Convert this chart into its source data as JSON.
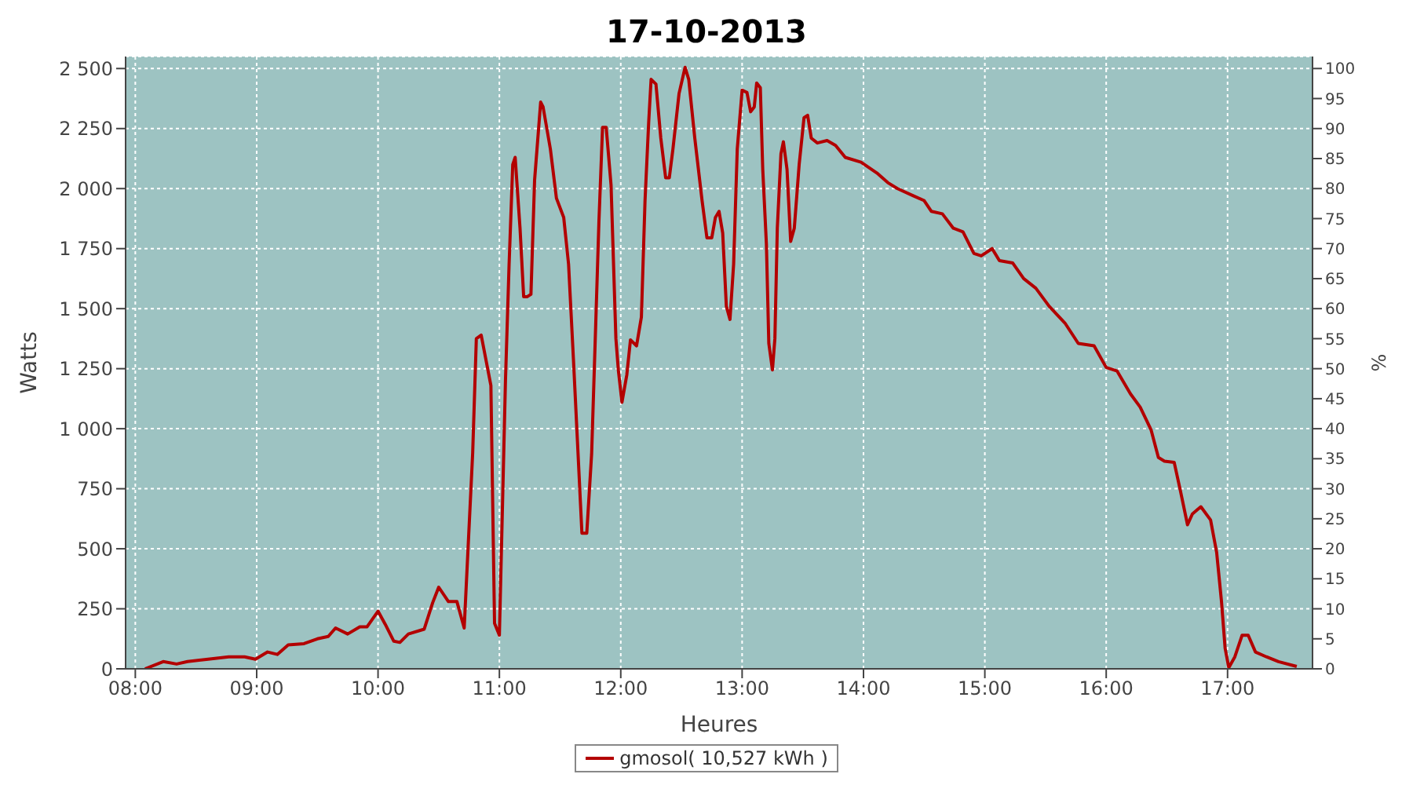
{
  "chart_data": {
    "type": "line",
    "title": "17-10-2013",
    "xlabel": "Heures",
    "ylabel": "Watts",
    "y2label": "%",
    "xlim": [
      7.92,
      17.7
    ],
    "xticks": [
      {
        "value": 8,
        "label": "08:00"
      },
      {
        "value": 9,
        "label": "09:00"
      },
      {
        "value": 10,
        "label": "10:00"
      },
      {
        "value": 11,
        "label": "11:00"
      },
      {
        "value": 12,
        "label": "12:00"
      },
      {
        "value": 13,
        "label": "13:00"
      },
      {
        "value": 14,
        "label": "14:00"
      },
      {
        "value": 15,
        "label": "15:00"
      },
      {
        "value": 16,
        "label": "16:00"
      },
      {
        "value": 17,
        "label": "17:00"
      }
    ],
    "ylim": [
      0,
      2550
    ],
    "yticks": [
      0,
      250,
      500,
      750,
      {
        "value": 1000,
        "label": "1 000"
      },
      {
        "value": 1250,
        "label": "1 250"
      },
      {
        "value": 1500,
        "label": "1 500"
      },
      {
        "value": 1750,
        "label": "1 750"
      },
      {
        "value": 2000,
        "label": "2 000"
      },
      {
        "value": 2250,
        "label": "2 250"
      },
      {
        "value": 2500,
        "label": "2 500"
      }
    ],
    "y2lim": [
      0,
      102
    ],
    "y2ticks": [
      0,
      5,
      10,
      15,
      20,
      25,
      30,
      35,
      40,
      45,
      50,
      55,
      60,
      65,
      70,
      75,
      80,
      85,
      90,
      95,
      100
    ],
    "grid": true,
    "legend": "bottom",
    "marker": "none",
    "line_style": "solid",
    "series": [
      {
        "name": "gmosol( 10,527 kWh )",
        "color": "#b30000",
        "x": [
          8.08,
          8.23,
          8.34,
          8.43,
          8.6,
          8.77,
          8.9,
          8.99,
          9.09,
          9.17,
          9.26,
          9.39,
          9.5,
          9.59,
          9.65,
          9.75,
          9.85,
          9.91,
          10.0,
          10.06,
          10.13,
          10.18,
          10.25,
          10.38,
          10.45,
          10.5,
          10.58,
          10.65,
          10.71,
          10.78,
          10.81,
          10.85,
          10.93,
          10.96,
          11.0,
          11.05,
          11.08,
          11.11,
          11.13,
          11.17,
          11.2,
          11.23,
          11.26,
          11.29,
          11.34,
          11.36,
          11.42,
          11.47,
          11.53,
          11.57,
          11.61,
          11.64,
          11.68,
          11.72,
          11.76,
          11.79,
          11.82,
          11.85,
          11.88,
          11.92,
          11.96,
          11.98,
          12.01,
          12.05,
          12.08,
          12.13,
          12.17,
          12.2,
          12.23,
          12.25,
          12.29,
          12.33,
          12.37,
          12.4,
          12.43,
          12.48,
          12.53,
          12.56,
          12.61,
          12.67,
          12.71,
          12.75,
          12.78,
          12.81,
          12.84,
          12.87,
          12.9,
          12.93,
          12.96,
          13.0,
          13.04,
          13.07,
          13.1,
          13.12,
          13.15,
          13.17,
          13.2,
          13.22,
          13.25,
          13.27,
          13.29,
          13.32,
          13.34,
          13.37,
          13.4,
          13.43,
          13.47,
          13.51,
          13.54,
          13.57,
          13.62,
          13.7,
          13.77,
          13.85,
          13.98,
          14.11,
          14.2,
          14.28,
          14.41,
          14.5,
          14.56,
          14.65,
          14.74,
          14.82,
          14.91,
          14.97,
          15.06,
          15.12,
          15.23,
          15.32,
          15.42,
          15.53,
          15.66,
          15.77,
          15.9,
          16.0,
          16.09,
          16.2,
          16.28,
          16.37,
          16.43,
          16.48,
          16.56,
          16.61,
          16.67,
          16.71,
          16.78,
          16.86,
          16.91,
          16.95,
          16.98,
          17.01,
          17.06,
          17.12,
          17.17,
          17.23,
          17.32,
          17.42,
          17.57
        ],
        "values": [
          0,
          30,
          20,
          30,
          40,
          50,
          50,
          40,
          70,
          60,
          100,
          105,
          125,
          135,
          170,
          145,
          175,
          175,
          240,
          185,
          115,
          110,
          145,
          165,
          275,
          340,
          280,
          280,
          170,
          900,
          1375,
          1390,
          1180,
          190,
          140,
          1200,
          1685,
          2100,
          2130,
          1835,
          1550,
          1550,
          1560,
          2035,
          2360,
          2340,
          2165,
          1960,
          1880,
          1685,
          1290,
          980,
          565,
          565,
          895,
          1375,
          1860,
          2255,
          2255,
          2015,
          1375,
          1245,
          1110,
          1225,
          1370,
          1345,
          1465,
          1950,
          2275,
          2455,
          2435,
          2210,
          2045,
          2045,
          2165,
          2395,
          2505,
          2455,
          2210,
          1950,
          1795,
          1795,
          1880,
          1905,
          1815,
          1510,
          1455,
          1685,
          2165,
          2410,
          2400,
          2320,
          2340,
          2440,
          2420,
          2080,
          1770,
          1355,
          1245,
          1375,
          1835,
          2145,
          2195,
          2080,
          1780,
          1835,
          2100,
          2295,
          2305,
          2210,
          2190,
          2200,
          2180,
          2130,
          2110,
          2065,
          2025,
          2000,
          1970,
          1950,
          1905,
          1895,
          1835,
          1820,
          1730,
          1720,
          1750,
          1700,
          1690,
          1625,
          1585,
          1510,
          1440,
          1355,
          1345,
          1255,
          1240,
          1145,
          1090,
          995,
          880,
          865,
          860,
          745,
          600,
          645,
          675,
          620,
          485,
          280,
          85,
          5,
          50,
          140,
          140,
          70,
          50,
          30,
          10
        ]
      }
    ]
  }
}
